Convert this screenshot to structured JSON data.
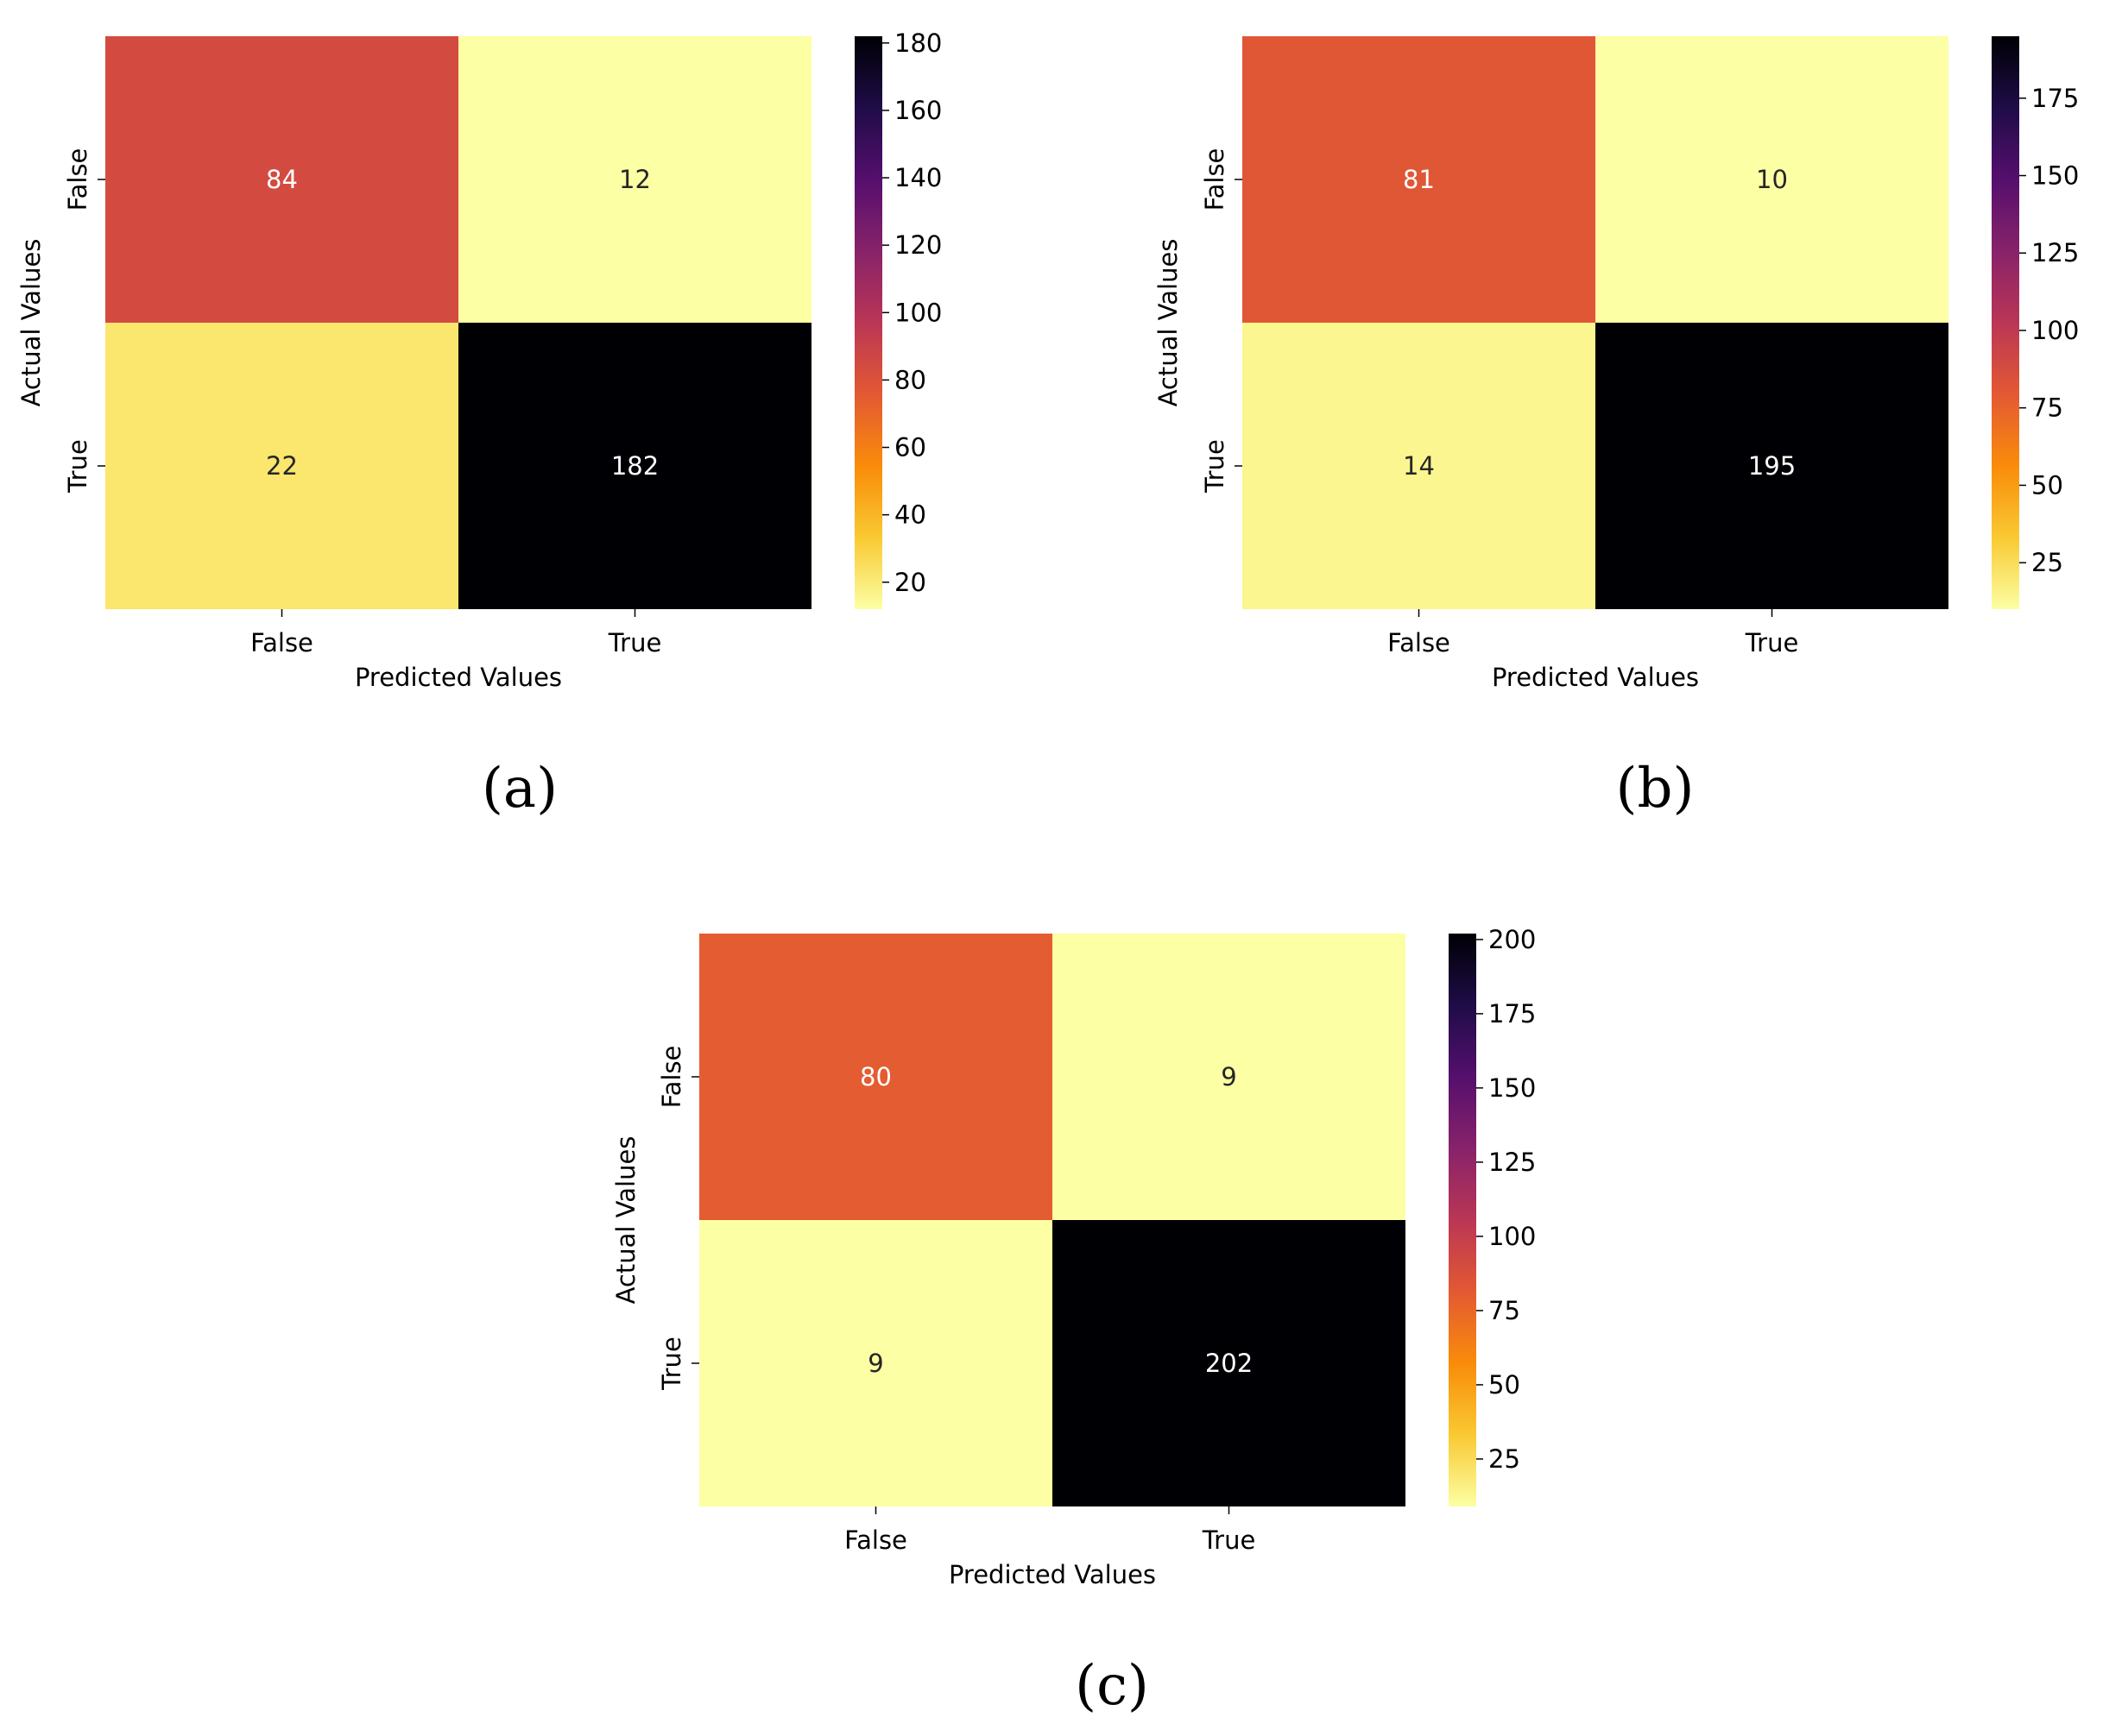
{
  "chart_data": [
    {
      "type": "heatmap",
      "panel": "a",
      "colormap": "inferno_r",
      "xlabel": "Predicted Values",
      "ylabel": "Actual Values",
      "x_categories": [
        "False",
        "True"
      ],
      "y_categories": [
        "False",
        "True"
      ],
      "values": [
        [
          84,
          12
        ],
        [
          22,
          182
        ]
      ],
      "colorbar_range": [
        12,
        182
      ],
      "colorbar_ticks": [
        20,
        40,
        60,
        80,
        100,
        120,
        140,
        160,
        180
      ]
    },
    {
      "type": "heatmap",
      "panel": "b",
      "colormap": "inferno_r",
      "xlabel": "Predicted Values",
      "ylabel": "Actual Values",
      "x_categories": [
        "False",
        "True"
      ],
      "y_categories": [
        "False",
        "True"
      ],
      "values": [
        [
          81,
          10
        ],
        [
          14,
          195
        ]
      ],
      "colorbar_range": [
        10,
        195
      ],
      "colorbar_ticks": [
        25,
        50,
        75,
        100,
        125,
        150,
        175
      ]
    },
    {
      "type": "heatmap",
      "panel": "c",
      "colormap": "inferno_r",
      "xlabel": "Predicted Values",
      "ylabel": "Actual Values",
      "x_categories": [
        "False",
        "True"
      ],
      "y_categories": [
        "False",
        "True"
      ],
      "values": [
        [
          80,
          9
        ],
        [
          9,
          202
        ]
      ],
      "colorbar_range": [
        9,
        202
      ],
      "colorbar_ticks": [
        25,
        50,
        75,
        100,
        125,
        150,
        175,
        200
      ]
    }
  ],
  "panel_labels": [
    "(a)",
    "(b)",
    "(c)"
  ],
  "colors": {
    "background": "#ffffff",
    "light_text": "#ffffff",
    "dark_text": "#262626"
  }
}
